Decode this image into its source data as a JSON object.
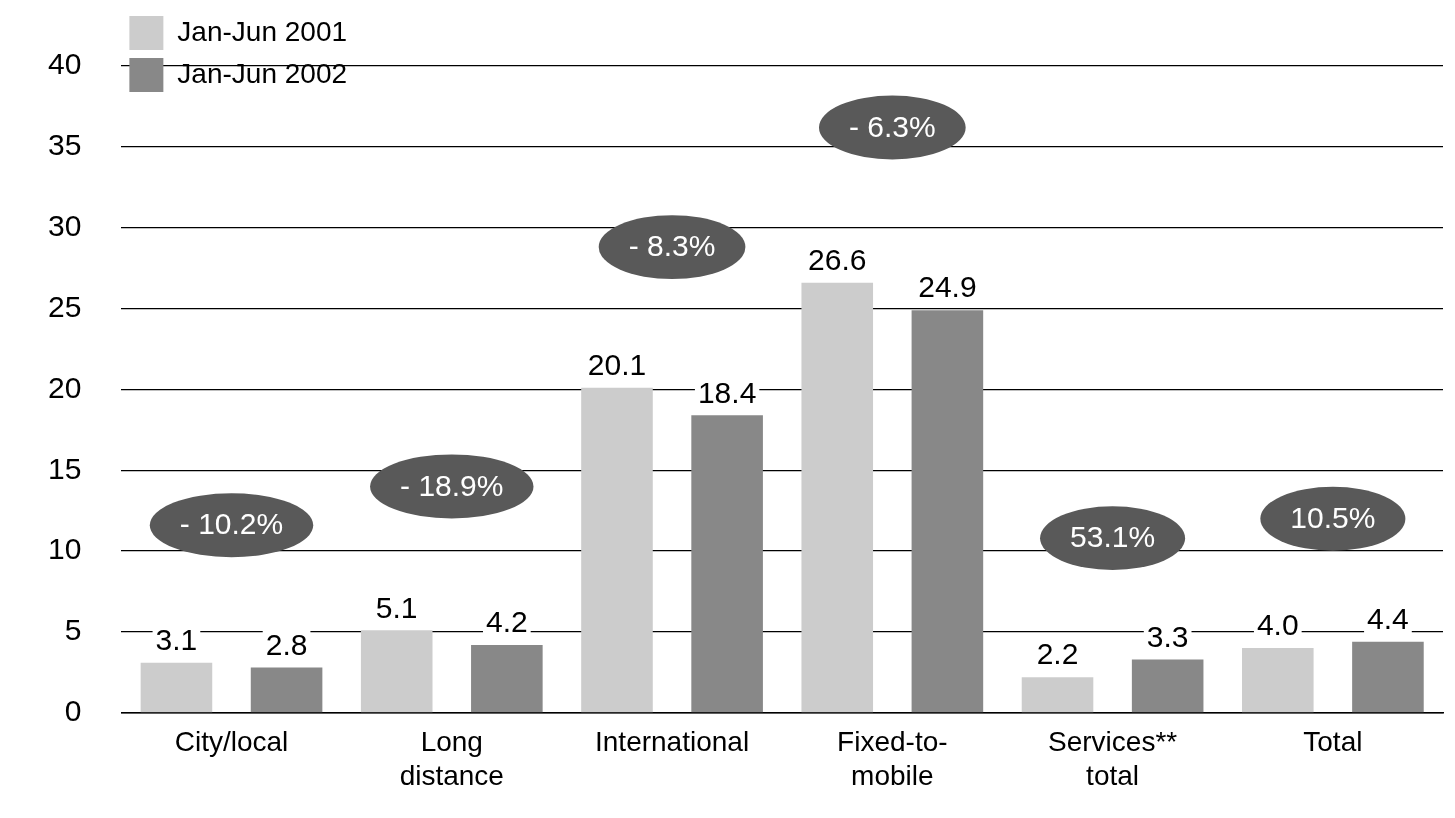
{
  "chart_data": {
    "type": "bar",
    "categories": [
      "City/local",
      "Long\ndistance",
      "International",
      "Fixed-to-\nmobile",
      "Services**\ntotal",
      "Total"
    ],
    "series": [
      {
        "name": "Jan-Jun 2001",
        "color": "#cccccc",
        "values": [
          3.1,
          5.1,
          20.1,
          26.6,
          2.2,
          4.0
        ],
        "value_labels": [
          "3.1",
          "5.1",
          "20.1",
          "26.6",
          "2.2",
          "4.0"
        ]
      },
      {
        "name": "Jan-Jun 2002",
        "color": "#888888",
        "values": [
          2.8,
          4.2,
          18.4,
          24.9,
          3.3,
          4.4
        ],
        "value_labels": [
          "2.8",
          "4.2",
          "18.4",
          "24.9",
          "3.3",
          "4.4"
        ]
      }
    ],
    "ylim": [
      0,
      40
    ],
    "yticks": [
      0,
      5,
      10,
      15,
      20,
      25,
      30,
      35,
      40
    ],
    "grid": "y",
    "legend": "top left",
    "annotations": [
      "- 10.2%",
      "- 18.9%",
      "- 8.3%",
      "- 6.3%",
      "53.1%",
      "10.5%"
    ]
  }
}
